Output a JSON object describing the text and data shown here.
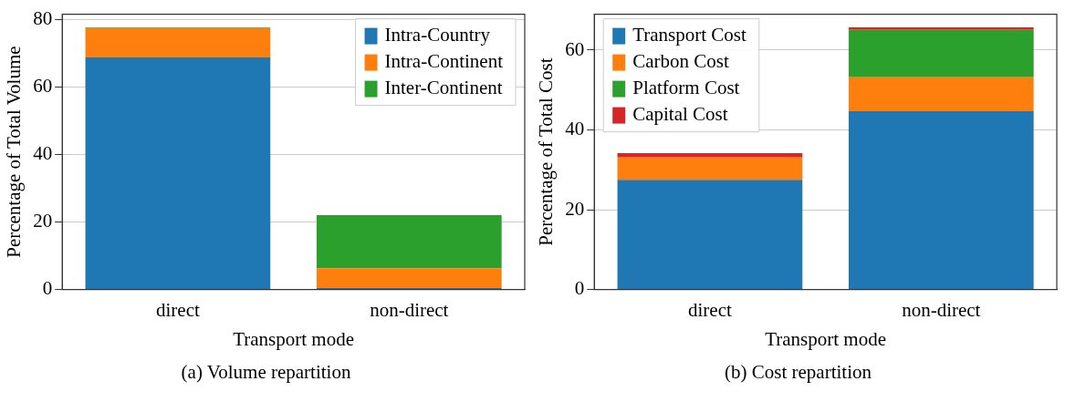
{
  "chart_data": [
    {
      "type": "bar",
      "stacked": true,
      "xlabel": "Transport mode",
      "ylabel": "Percentage of Total Volume",
      "categories": [
        "direct",
        "non-direct"
      ],
      "ylim": [
        0,
        81.5
      ],
      "yticks": [
        0,
        20,
        40,
        60,
        80
      ],
      "grid": "y",
      "legend": "top right",
      "series": [
        {
          "name": "Intra-Country",
          "color": "#1f77b4",
          "values": [
            68.7,
            0.4
          ]
        },
        {
          "name": "Intra-Continent",
          "color": "#ff7f0e",
          "values": [
            8.7,
            5.9
          ]
        },
        {
          "name": "Inter-Continent",
          "color": "#2ca02c",
          "values": [
            0.2,
            15.7
          ]
        }
      ],
      "annotations": [
        "(a) Volume repartition"
      ]
    },
    {
      "type": "bar",
      "stacked": true,
      "xlabel": "Transport mode",
      "ylabel": "Percentage of Total Cost",
      "categories": [
        "direct",
        "non-direct"
      ],
      "ylim": [
        0,
        69
      ],
      "yticks": [
        0,
        20,
        40,
        60
      ],
      "grid": "y",
      "legend": "top left",
      "series": [
        {
          "name": "Transport Cost",
          "color": "#1f77b4",
          "values": [
            27.5,
            44.7
          ]
        },
        {
          "name": "Carbon Cost",
          "color": "#ff7f0e",
          "values": [
            5.6,
            8.5
          ]
        },
        {
          "name": "Platform Cost",
          "color": "#2ca02c",
          "values": [
            0,
            11.9
          ]
        },
        {
          "name": "Capital Cost",
          "color": "#d62728",
          "values": [
            1.1,
            0.6
          ]
        }
      ],
      "annotations": [
        "(b) Cost repartition"
      ]
    }
  ]
}
